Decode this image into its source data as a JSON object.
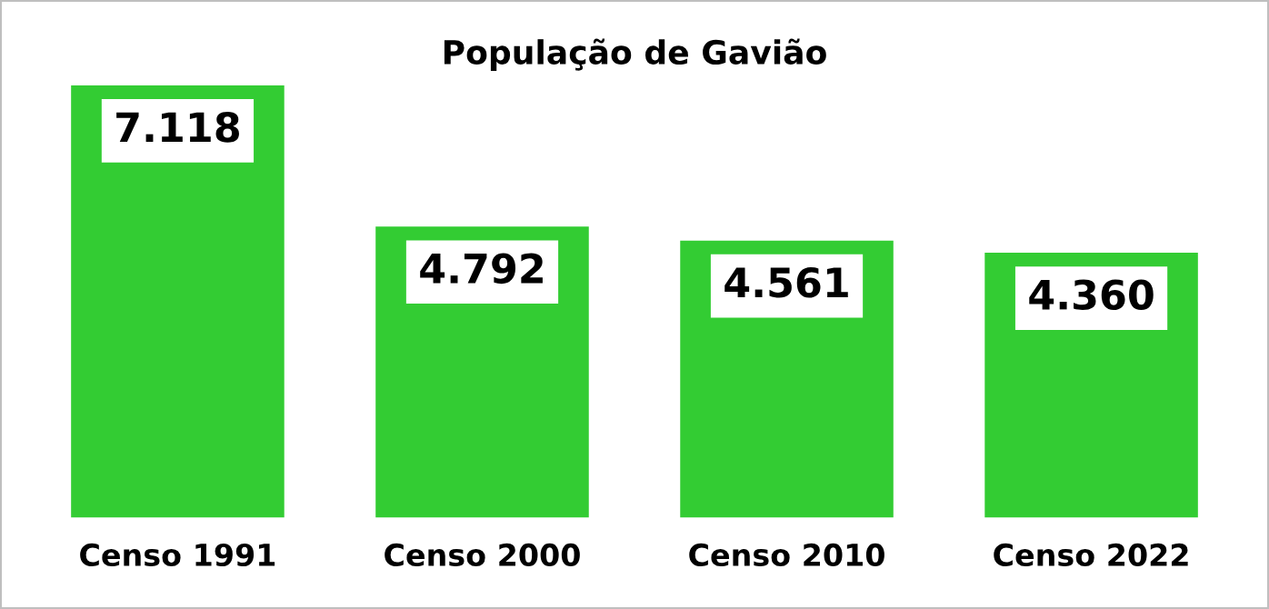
{
  "chart_data": {
    "type": "bar",
    "title": "População de Gavião",
    "categories": [
      "Censo 1991",
      "Censo 2000",
      "Censo 2010",
      "Censo 2022"
    ],
    "values": [
      7118,
      4792,
      4561,
      4360
    ],
    "value_labels": [
      "7.118",
      "4.792",
      "4.561",
      "4.360"
    ],
    "color": "#33cc33",
    "grid": false,
    "legend": false
  }
}
